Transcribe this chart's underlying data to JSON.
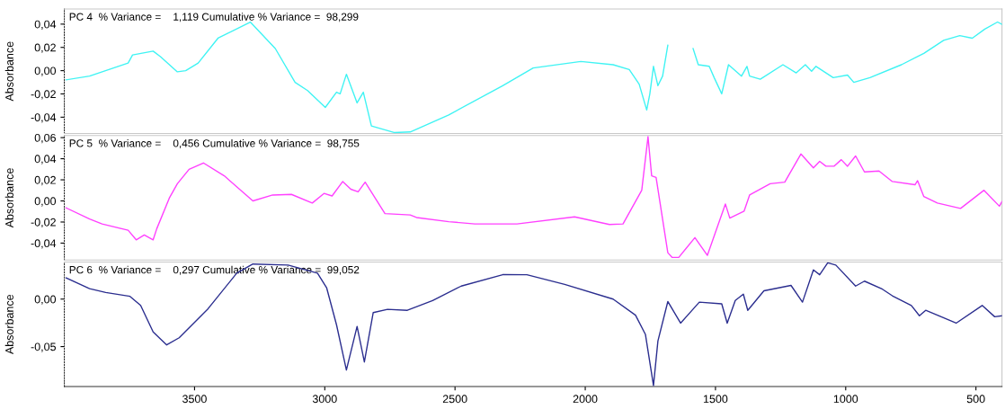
{
  "chart_data": [
    {
      "type": "line",
      "title": "PC 4  % Variance =    1,119 Cumulative % Variance =  98,299",
      "ylabel": "Absorbance",
      "xlim": [
        4000,
        400
      ],
      "ylim": [
        -0.054,
        0.053
      ],
      "yticks": [
        {
          "value": 0.04,
          "label": "0,04"
        },
        {
          "value": 0.02,
          "label": "0,02"
        },
        {
          "value": 0,
          "label": "0,00"
        },
        {
          "value": -0.02,
          "label": "-0,02"
        },
        {
          "value": -0.04,
          "label": "-0,04"
        }
      ],
      "tick_labels": "y",
      "grid": false,
      "legend": false,
      "series": [
        {
          "color": "#3ff3f3",
          "x": [
            3993,
            3903,
            3755,
            3738,
            3659,
            3631,
            3566,
            3534,
            3486,
            3410,
            3286,
            3190,
            3114,
            3066,
            2998,
            2955,
            2941,
            2917,
            2876,
            2852,
            2821,
            2734,
            2672,
            2524,
            2317,
            2200,
            2017,
            1893,
            1831,
            1793,
            1764,
            1752,
            1738,
            1721,
            1703,
            1683,
            1634,
            1617,
            1586,
            1566,
            1524,
            1505,
            1476,
            1450,
            1400,
            1379,
            1369,
            1328,
            1241,
            1190,
            1155,
            1131,
            1114,
            1048,
            993,
            969,
            907,
            786,
            700,
            624,
            562,
            514,
            466,
            417,
            400
          ],
          "values": [
            -0.0079,
            -0.0047,
            0.0065,
            0.0135,
            0.0168,
            0.0121,
            -0.001,
            0.0,
            0.0065,
            0.0279,
            0.0418,
            0.019,
            -0.0101,
            -0.0171,
            -0.0316,
            -0.0185,
            -0.0199,
            -0.0031,
            -0.0277,
            -0.0185,
            -0.0475,
            -0.0532,
            -0.0527,
            -0.038,
            -0.0129,
            0.0023,
            0.0079,
            0.0051,
            0.0009,
            -0.0116,
            -0.0338,
            -0.0199,
            0.0037,
            -0.0129,
            -0.0047,
            0.0218,
            null,
            null,
            0.019,
            0.0051,
            0.0037,
            -0.006,
            -0.0199,
            0.0051,
            -0.0047,
            0.0037,
            -0.0047,
            -0.0074,
            0.0051,
            -0.0019,
            0.0051,
            -0.0005,
            0.0037,
            -0.006,
            -0.0038,
            -0.0101,
            -0.006,
            0.0051,
            0.0149,
            0.026,
            0.0301,
            0.0279,
            0.0357,
            0.0418,
            0.0398
          ]
        }
      ]
    },
    {
      "type": "line",
      "title": "PC 5  % Variance =    0,456 Cumulative % Variance =  98,755",
      "ylabel": "Absorbance",
      "xlim": [
        4000,
        400
      ],
      "ylim": [
        -0.056,
        0.062
      ],
      "yticks": [
        {
          "value": 0.06,
          "label": "0,06"
        },
        {
          "value": 0.04,
          "label": "0,04"
        },
        {
          "value": 0.02,
          "label": "0,02"
        },
        {
          "value": 0,
          "label": "0,00"
        },
        {
          "value": -0.02,
          "label": "-0,02"
        },
        {
          "value": -0.04,
          "label": "-0,04"
        }
      ],
      "tick_labels": "y",
      "grid": false,
      "legend": false,
      "series": [
        {
          "color": "#ff40ff",
          "x": [
            3993,
            3903,
            3855,
            3755,
            3724,
            3693,
            3659,
            3645,
            3597,
            3566,
            3521,
            3466,
            3386,
            3276,
            3200,
            3128,
            3048,
            3003,
            2972,
            2931,
            2900,
            2872,
            2845,
            2769,
            2672,
            2648,
            2524,
            2424,
            2317,
            2262,
            2041,
            1907,
            1855,
            1783,
            1759,
            1745,
            1728,
            1683,
            1666,
            1641,
            1579,
            1531,
            1462,
            1445,
            1390,
            1369,
            1290,
            1234,
            1172,
            1124,
            1100,
            1076,
            1045,
            1017,
            993,
            962,
            928,
            872,
            821,
            734,
            724,
            700,
            648,
            559,
            469,
            410,
            400
          ],
          "values": [
            -0.0066,
            -0.0172,
            -0.0218,
            -0.0278,
            -0.0369,
            -0.0323,
            -0.0369,
            -0.0263,
            0.0026,
            0.0163,
            0.0299,
            0.036,
            0.0238,
            0.0,
            0.0056,
            0.0062,
            -0.002,
            0.0071,
            0.0047,
            0.0184,
            0.0111,
            0.0086,
            0.0178,
            -0.012,
            -0.0133,
            -0.0157,
            -0.0197,
            -0.0218,
            -0.0218,
            -0.0218,
            -0.0151,
            -0.0224,
            -0.0218,
            0.0102,
            0.0609,
            0.0238,
            0.0223,
            -0.0491,
            -0.0536,
            -0.0536,
            -0.0348,
            -0.0516,
            -0.0029,
            -0.0163,
            -0.0096,
            0.0056,
            0.0163,
            0.0178,
            0.0445,
            0.0314,
            0.0375,
            0.0329,
            0.0329,
            0.0391,
            0.0329,
            0.0426,
            0.0275,
            0.0284,
            0.0184,
            0.0153,
            0.0192,
            0.0041,
            -0.002,
            -0.0071,
            0.0101,
            -0.005,
            -0.0005
          ]
        }
      ]
    },
    {
      "type": "line",
      "title": "PC 6  % Variance =    0,297 Cumulative % Variance =  99,052",
      "ylabel": "Absorbance",
      "xlim": [
        4000,
        400
      ],
      "ylim": [
        -0.092,
        0.039
      ],
      "xticks": [
        3500,
        3000,
        2500,
        2000,
        1500,
        1000,
        500
      ],
      "yticks": [
        {
          "value": 0,
          "label": "0,00"
        },
        {
          "value": -0.05,
          "label": "-0,05"
        }
      ],
      "grid": false,
      "legend": false,
      "series": [
        {
          "color": "#2b2e8f",
          "x": [
            3993,
            3903,
            3841,
            3748,
            3707,
            3659,
            3607,
            3559,
            3448,
            3338,
            3276,
            3141,
            3028,
            2993,
            2955,
            2917,
            2876,
            2848,
            2814,
            2759,
            2683,
            2586,
            2476,
            2317,
            2224,
            2079,
            1893,
            1807,
            1769,
            1738,
            1721,
            1683,
            1634,
            1562,
            1476,
            1455,
            1424,
            1393,
            1376,
            1314,
            1210,
            1166,
            1124,
            1100,
            1069,
            1038,
            962,
            928,
            859,
            821,
            748,
            717,
            693,
            576,
            476,
            428,
            400
          ],
          "values": [
            0.0223,
            0.011,
            0.007,
            0.0029,
            -0.0067,
            -0.0346,
            -0.0482,
            -0.0407,
            -0.0101,
            0.0273,
            0.0369,
            0.0358,
            0.0273,
            0.012,
            -0.027,
            -0.0747,
            -0.0288,
            -0.0662,
            -0.0142,
            -0.0108,
            -0.0118,
            -0.0015,
            0.0137,
            0.0257,
            0.0256,
            0.0154,
            0.0,
            -0.0169,
            -0.0371,
            -0.091,
            -0.0441,
            -0.0026,
            -0.0253,
            -0.0032,
            -0.005,
            -0.0253,
            -0.0015,
            0.0052,
            -0.0118,
            0.0087,
            0.0144,
            -0.0032,
            0.0308,
            0.0256,
            0.0382,
            0.0358,
            0.0137,
            0.0189,
            0.0104,
            0.0035,
            -0.0067,
            -0.0175,
            -0.0118,
            -0.0253,
            -0.0067,
            -0.0186,
            -0.0175
          ]
        }
      ]
    }
  ]
}
